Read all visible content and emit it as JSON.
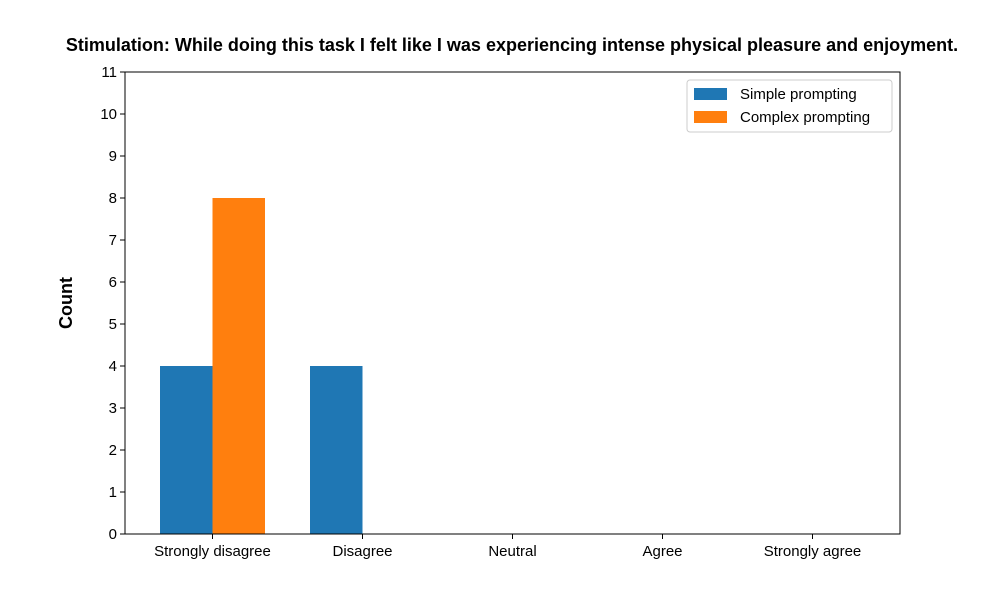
{
  "chart_data": {
    "type": "bar",
    "title": "Stimulation: While doing this task I felt like I was experiencing intense physical pleasure and enjoyment.",
    "xlabel": "",
    "ylabel": "Count",
    "categories": [
      "Strongly disagree",
      "Disagree",
      "Neutral",
      "Agree",
      "Strongly agree"
    ],
    "series": [
      {
        "name": "Simple prompting",
        "values": [
          4,
          4,
          0,
          0,
          0
        ],
        "color": "#1f77b4"
      },
      {
        "name": "Complex prompting",
        "values": [
          8,
          0,
          0,
          0,
          0
        ],
        "color": "#ff7f0e"
      }
    ],
    "ylim": [
      0,
      11
    ],
    "yticks": [
      0,
      1,
      2,
      3,
      4,
      5,
      6,
      7,
      8,
      9,
      10,
      11
    ],
    "grid": false,
    "legend_position": "top-right"
  }
}
